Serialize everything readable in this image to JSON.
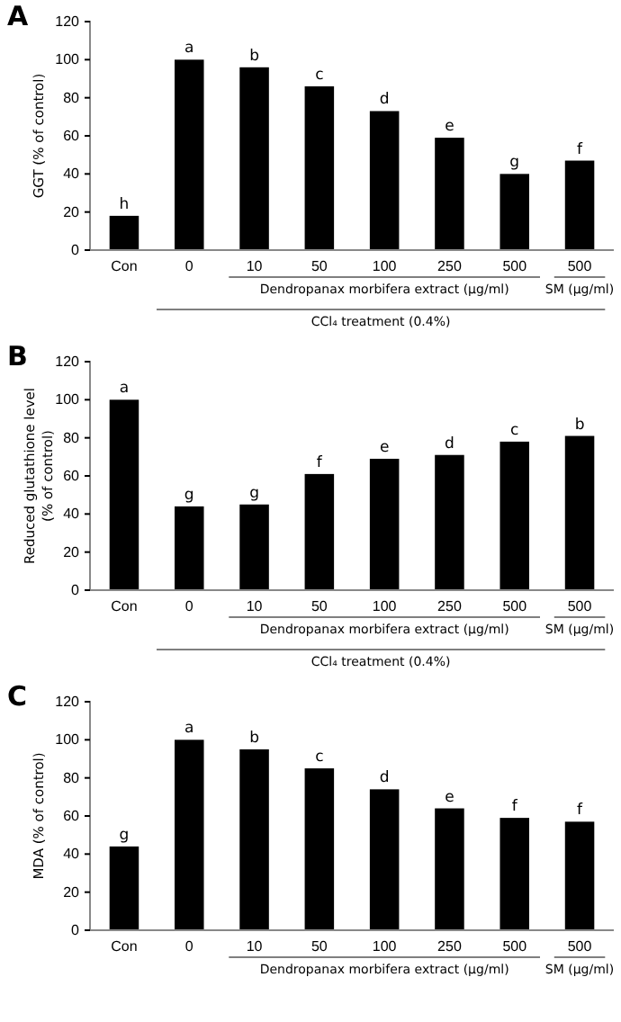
{
  "chart_data": [
    {
      "type": "bar",
      "title": "A",
      "ylabel": "GGT (% of control)",
      "categories": [
        "Con",
        "0",
        "10",
        "50",
        "100",
        "250",
        "500",
        "500"
      ],
      "values": [
        18,
        100,
        96,
        86,
        73,
        59,
        40,
        47
      ],
      "value_labels": [
        "h",
        "a",
        "b",
        "c",
        "d",
        "e",
        "g",
        "f"
      ],
      "color": "#000000",
      "ylim": [
        0,
        120
      ],
      "yticks": [
        0,
        20,
        40,
        60,
        80,
        100,
        120
      ],
      "annotations": [
        "Dendropanax morbifera extract (μg/ml)",
        "SM (μg/ml)",
        "CCl₄ treatment (0.4%)"
      ]
    },
    {
      "type": "bar",
      "title": "B",
      "ylabel": "Reduced glutathione level\n(% of control)",
      "categories": [
        "Con",
        "0",
        "10",
        "50",
        "100",
        "250",
        "500",
        "500"
      ],
      "values": [
        100,
        44,
        45,
        61,
        69,
        71,
        78,
        81
      ],
      "value_labels": [
        "a",
        "g",
        "g",
        "f",
        "e",
        "d",
        "c",
        "b"
      ],
      "color": "#000000",
      "ylim": [
        0,
        120
      ],
      "yticks": [
        0,
        20,
        40,
        60,
        80,
        100,
        120
      ],
      "annotations": [
        "Dendropanax morbifera extract (μg/ml)",
        "SM (μg/ml)",
        "CCl₄ treatment (0.4%)"
      ]
    },
    {
      "type": "bar",
      "title": "C",
      "ylabel": "MDA (% of control)",
      "categories": [
        "Con",
        "0",
        "10",
        "50",
        "100",
        "250",
        "500",
        "500"
      ],
      "values": [
        44,
        100,
        95,
        85,
        74,
        64,
        59,
        57
      ],
      "value_labels": [
        "g",
        "a",
        "b",
        "c",
        "d",
        "e",
        "f",
        "f"
      ],
      "color": "#000000",
      "ylim": [
        0,
        120
      ],
      "yticks": [
        0,
        20,
        40,
        60,
        80,
        100,
        120
      ],
      "annotations": [
        "Dendropanax morbifera extract (μg/ml)",
        "SM (μg/ml)"
      ]
    }
  ]
}
